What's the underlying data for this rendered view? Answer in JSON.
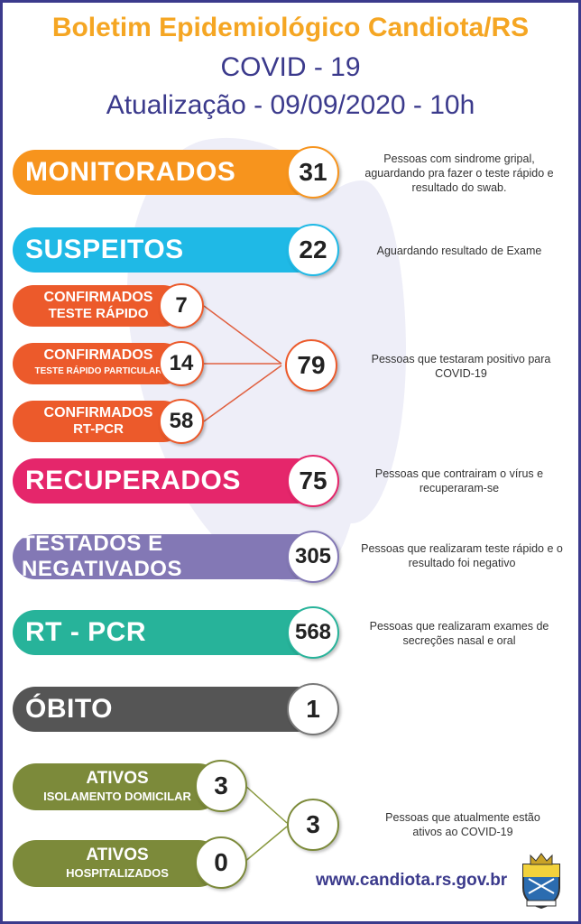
{
  "header": {
    "title": "Boletim Epidemiológico Candiota/RS",
    "subtitle": "COVID - 19",
    "update": "Atualização - 09/09/2020 - 10h"
  },
  "rows": {
    "monitorados": {
      "label": "MONITORADOS",
      "value": "31",
      "note": "Pessoas com sindrome gripal, aguardando pra fazer o teste rápido e resultado do swab.",
      "color": "#f7941d"
    },
    "suspeitos": {
      "label": "SUSPEITOS",
      "value": "22",
      "note": "Aguardando resultado de Exame",
      "color": "#1fb9e6"
    },
    "conf_rapido": {
      "l1": "CONFIRMADOS",
      "l2": "TESTE RÁPIDO",
      "value": "7",
      "color": "#ec5a2b"
    },
    "conf_particular": {
      "l1": "CONFIRMADOS",
      "l2": "TESTE RÁPIDO PARTICULAR",
      "value": "14",
      "color": "#ec5a2b"
    },
    "conf_rtpcr": {
      "l1": "CONFIRMADOS",
      "l2": "RT-PCR",
      "value": "58",
      "color": "#ec5a2b"
    },
    "confirmados_total": {
      "value": "79",
      "note": "Pessoas que testaram positivo para COVID-19"
    },
    "recuperados": {
      "label": "RECUPERADOS",
      "value": "75",
      "note": "Pessoas que contrairam o vírus e recuperaram-se",
      "color": "#e5266b"
    },
    "negativados": {
      "label": "TESTADOS E NEGATIVADOS",
      "value": "305",
      "note": "Pessoas que realizaram teste rápido e o resultado foi negativo",
      "color": "#8378b5"
    },
    "rtpcr": {
      "label": "RT - PCR",
      "value": "568",
      "note": "Pessoas que realizaram exames de secreções nasal e oral",
      "color": "#27b39a"
    },
    "obito": {
      "label": "ÓBITO",
      "value": "1",
      "color": "#555555"
    },
    "ativos_isol": {
      "l1": "ATIVOS",
      "l2": "ISOLAMENTO DOMICILAR",
      "value": "3",
      "color": "#7c8a3a"
    },
    "ativos_hosp": {
      "l1": "ATIVOS",
      "l2": "HOSPITALIZADOS",
      "value": "0",
      "color": "#7c8a3a"
    },
    "ativos_total": {
      "value": "3",
      "note": "Pessoas que atualmente estão ativos ao COVID-19"
    }
  },
  "footer": {
    "url": "www.candiota.rs.gov.br"
  }
}
